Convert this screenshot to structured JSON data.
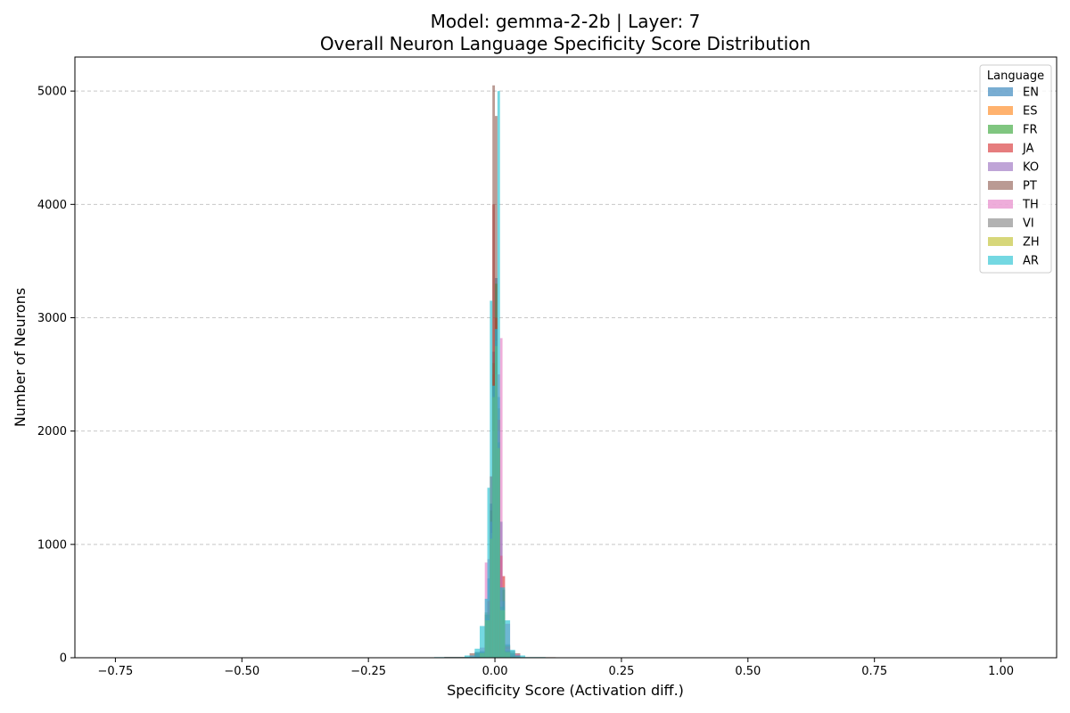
{
  "chart_data": {
    "type": "histogram",
    "title_line1": "Model: gemma-2-2b | Layer: 7",
    "title_line2": "Overall Neuron Language Specificity Score Distribution",
    "xlabel": "Specificity Score (Activation diff.)",
    "ylabel": "Number of Neurons",
    "xlim": [
      -0.83,
      1.11
    ],
    "ylim": [
      0,
      5300
    ],
    "x_ticks": [
      -0.75,
      -0.5,
      -0.25,
      0.0,
      0.25,
      0.5,
      0.75,
      1.0
    ],
    "x_tick_labels": [
      "−0.75",
      "−0.50",
      "−0.25",
      "0.00",
      "0.25",
      "0.50",
      "0.75",
      "1.00"
    ],
    "y_ticks": [
      0,
      1000,
      2000,
      3000,
      4000,
      5000
    ],
    "y_tick_labels": [
      "0",
      "1000",
      "2000",
      "3000",
      "4000",
      "5000"
    ],
    "grid": "y-dashed",
    "bar_alpha": 0.6,
    "legend": {
      "title": "Language",
      "placement": "top-right"
    },
    "series": [
      {
        "name": "EN",
        "color": "#1f77b4",
        "bins": [
          [
            -0.06,
            -0.04,
            6
          ],
          [
            -0.04,
            -0.03,
            25
          ],
          [
            -0.03,
            -0.02,
            60
          ],
          [
            -0.02,
            -0.015,
            250
          ],
          [
            -0.015,
            -0.01,
            700
          ],
          [
            -0.01,
            -0.005,
            1360
          ],
          [
            -0.005,
            0.0,
            2700
          ],
          [
            0.0,
            0.005,
            3350
          ],
          [
            0.005,
            0.01,
            2300
          ],
          [
            0.01,
            0.015,
            1200
          ],
          [
            0.015,
            0.02,
            450
          ],
          [
            0.02,
            0.03,
            120
          ],
          [
            0.03,
            0.05,
            25
          ]
        ]
      },
      {
        "name": "ES",
        "color": "#ff7f0e",
        "bins": [
          [
            -0.03,
            -0.02,
            40
          ],
          [
            -0.02,
            -0.01,
            380
          ],
          [
            -0.01,
            -0.005,
            1100
          ],
          [
            -0.005,
            0.0,
            2500
          ],
          [
            0.0,
            0.005,
            3000
          ],
          [
            0.005,
            0.01,
            2100
          ],
          [
            0.01,
            0.02,
            500
          ],
          [
            0.02,
            0.03,
            60
          ]
        ]
      },
      {
        "name": "FR",
        "color": "#2ca02c",
        "bins": [
          [
            -0.05,
            -0.03,
            10
          ],
          [
            -0.03,
            -0.02,
            50
          ],
          [
            -0.02,
            -0.01,
            400
          ],
          [
            -0.01,
            -0.005,
            1300
          ],
          [
            -0.005,
            0.0,
            2600
          ],
          [
            0.0,
            0.005,
            3300
          ],
          [
            0.005,
            0.01,
            2200
          ],
          [
            0.01,
            0.02,
            600
          ],
          [
            0.02,
            0.03,
            110
          ],
          [
            0.03,
            0.05,
            20
          ]
        ]
      },
      {
        "name": "JA",
        "color": "#d62728",
        "bins": [
          [
            -0.03,
            -0.02,
            30
          ],
          [
            -0.02,
            -0.015,
            120
          ],
          [
            -0.015,
            -0.01,
            500
          ],
          [
            -0.01,
            -0.005,
            1600
          ],
          [
            -0.005,
            0.0,
            4000
          ],
          [
            0.0,
            0.005,
            3000
          ],
          [
            0.005,
            0.01,
            2100
          ],
          [
            0.01,
            0.015,
            900
          ],
          [
            0.015,
            0.02,
            720
          ],
          [
            0.02,
            0.03,
            100
          ]
        ]
      },
      {
        "name": "KO",
        "color": "#9467bd",
        "bins": [
          [
            -0.04,
            -0.02,
            50
          ],
          [
            -0.02,
            -0.01,
            350
          ],
          [
            -0.01,
            -0.005,
            1200
          ],
          [
            -0.005,
            0.0,
            2400
          ],
          [
            0.0,
            0.005,
            2900
          ],
          [
            0.005,
            0.01,
            2000
          ],
          [
            0.01,
            0.02,
            500
          ],
          [
            0.02,
            0.03,
            80
          ]
        ]
      },
      {
        "name": "PT",
        "color": "#8c564b",
        "bins": [
          [
            -0.15,
            -0.1,
            4
          ],
          [
            -0.1,
            -0.05,
            8
          ],
          [
            -0.05,
            -0.02,
            40
          ],
          [
            -0.02,
            -0.01,
            300
          ],
          [
            -0.01,
            -0.005,
            1000
          ],
          [
            -0.005,
            0.0,
            5050
          ],
          [
            0.0,
            0.005,
            4780
          ],
          [
            0.005,
            0.01,
            1700
          ],
          [
            0.01,
            0.02,
            400
          ],
          [
            0.02,
            0.05,
            40
          ],
          [
            0.05,
            0.12,
            5
          ]
        ]
      },
      {
        "name": "TH",
        "color": "#e377c2",
        "bins": [
          [
            -0.05,
            -0.03,
            20
          ],
          [
            -0.03,
            -0.02,
            90
          ],
          [
            -0.02,
            -0.015,
            840
          ],
          [
            -0.015,
            -0.01,
            870
          ],
          [
            -0.01,
            -0.005,
            1100
          ],
          [
            -0.005,
            0.0,
            2000
          ],
          [
            0.0,
            0.005,
            2500
          ],
          [
            0.005,
            0.01,
            2500
          ],
          [
            0.01,
            0.015,
            2820
          ],
          [
            0.015,
            0.02,
            300
          ],
          [
            0.02,
            0.03,
            300
          ],
          [
            0.03,
            0.05,
            30
          ]
        ]
      },
      {
        "name": "VI",
        "color": "#7f7f7f",
        "bins": [
          [
            -0.04,
            -0.02,
            50
          ],
          [
            -0.02,
            -0.01,
            380
          ],
          [
            -0.01,
            -0.005,
            1100
          ],
          [
            -0.005,
            0.0,
            2400
          ],
          [
            0.0,
            0.005,
            2800
          ],
          [
            0.005,
            0.01,
            1900
          ],
          [
            0.01,
            0.02,
            450
          ],
          [
            0.02,
            0.04,
            60
          ]
        ]
      },
      {
        "name": "ZH",
        "color": "#bcbd22",
        "bins": [
          [
            -0.03,
            -0.02,
            40
          ],
          [
            -0.02,
            -0.01,
            330
          ],
          [
            -0.01,
            -0.005,
            1050
          ],
          [
            -0.005,
            0.0,
            2300
          ],
          [
            0.0,
            0.005,
            2750
          ],
          [
            0.005,
            0.01,
            1850
          ],
          [
            0.01,
            0.02,
            420
          ],
          [
            0.02,
            0.03,
            50
          ]
        ]
      },
      {
        "name": "AR",
        "color": "#17becf",
        "bins": [
          [
            -0.12,
            -0.06,
            6
          ],
          [
            -0.06,
            -0.04,
            20
          ],
          [
            -0.04,
            -0.03,
            80
          ],
          [
            -0.03,
            -0.02,
            280
          ],
          [
            -0.02,
            -0.015,
            520
          ],
          [
            -0.015,
            -0.01,
            1500
          ],
          [
            -0.01,
            -0.005,
            3150
          ],
          [
            -0.005,
            0.0,
            2400
          ],
          [
            0.0,
            0.005,
            2900
          ],
          [
            0.005,
            0.01,
            5000
          ],
          [
            0.01,
            0.02,
            620
          ],
          [
            0.02,
            0.03,
            330
          ],
          [
            0.03,
            0.04,
            70
          ],
          [
            0.04,
            0.06,
            20
          ],
          [
            0.06,
            0.1,
            6
          ]
        ]
      }
    ]
  }
}
